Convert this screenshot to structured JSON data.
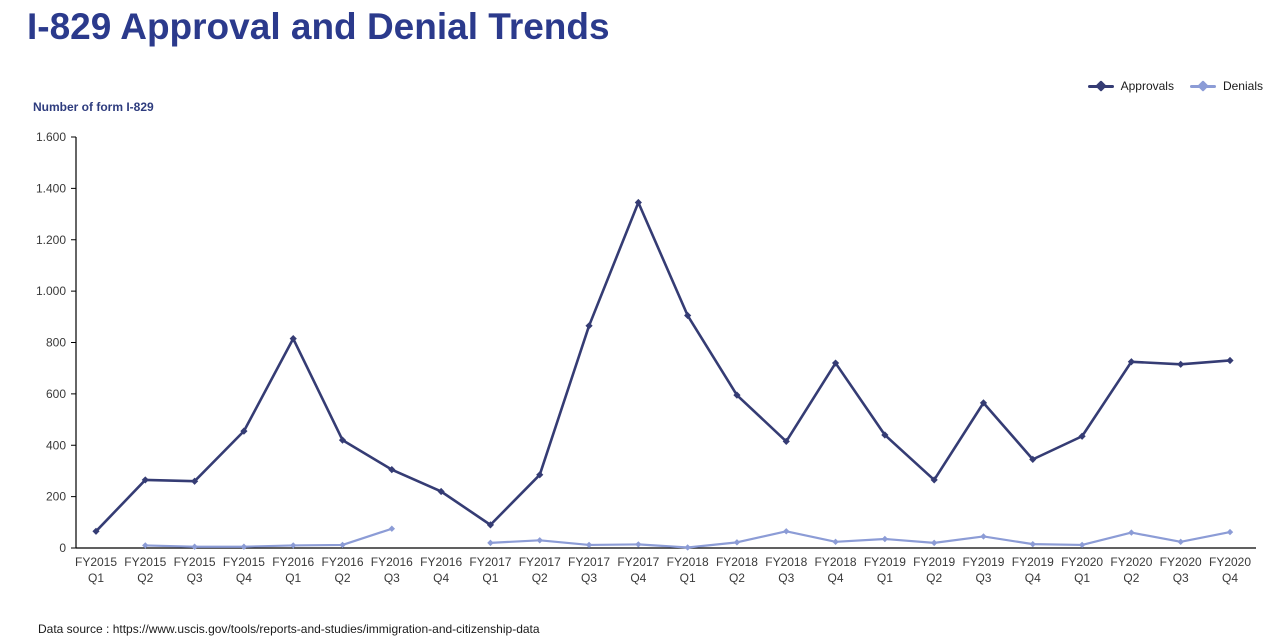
{
  "page": {
    "title": "I-829 Approval and Denial Trends",
    "footer": "Data source : https://www.uscis.gov/tools/reports-and-studies/immigration-and-citizenship-data"
  },
  "colors": {
    "title": "#2b3a8c",
    "approvals": "#353c74",
    "denials": "#8c9cd6",
    "axis": "#000000",
    "axis_text": "#3a3a3a"
  },
  "chart_data": {
    "type": "line",
    "title": "I-829 Approval and Denial Trends",
    "ylabel": "Number of form I-829",
    "xlabel": "",
    "ylim": [
      0,
      1600
    ],
    "ytick_step": 200,
    "ytick_labels": [
      "0",
      "200",
      "400",
      "600",
      "800",
      "1.000",
      "1.200",
      "1.400",
      "1.600"
    ],
    "grid": false,
    "legend_position": "top-right",
    "categories": [
      "FY2015 Q1",
      "FY2015 Q2",
      "FY2015 Q3",
      "FY2015 Q4",
      "FY2016 Q1",
      "FY2016 Q2",
      "FY2016 Q3",
      "FY2016 Q4",
      "FY2017 Q1",
      "FY2017 Q2",
      "FY2017 Q3",
      "FY2017 Q4",
      "FY2018 Q1",
      "FY2018 Q2",
      "FY2018 Q3",
      "FY2018 Q4",
      "FY2019 Q1",
      "FY2019 Q2",
      "FY2019 Q3",
      "FY2019 Q4",
      "FY2020 Q1",
      "FY2020 Q2",
      "FY2020 Q3",
      "FY2020 Q4"
    ],
    "series": [
      {
        "name": "Approvals",
        "color": "#353c74",
        "values": [
          65,
          265,
          260,
          455,
          815,
          420,
          305,
          220,
          90,
          285,
          865,
          1345,
          905,
          595,
          415,
          720,
          440,
          265,
          565,
          345,
          435,
          725,
          715,
          730
        ]
      },
      {
        "name": "Denials",
        "color": "#8c9cd6",
        "values": [
          null,
          10,
          5,
          5,
          10,
          12,
          75,
          null,
          20,
          30,
          12,
          14,
          2,
          22,
          65,
          24,
          35,
          20,
          45,
          15,
          12,
          60,
          24,
          62
        ]
      }
    ]
  }
}
